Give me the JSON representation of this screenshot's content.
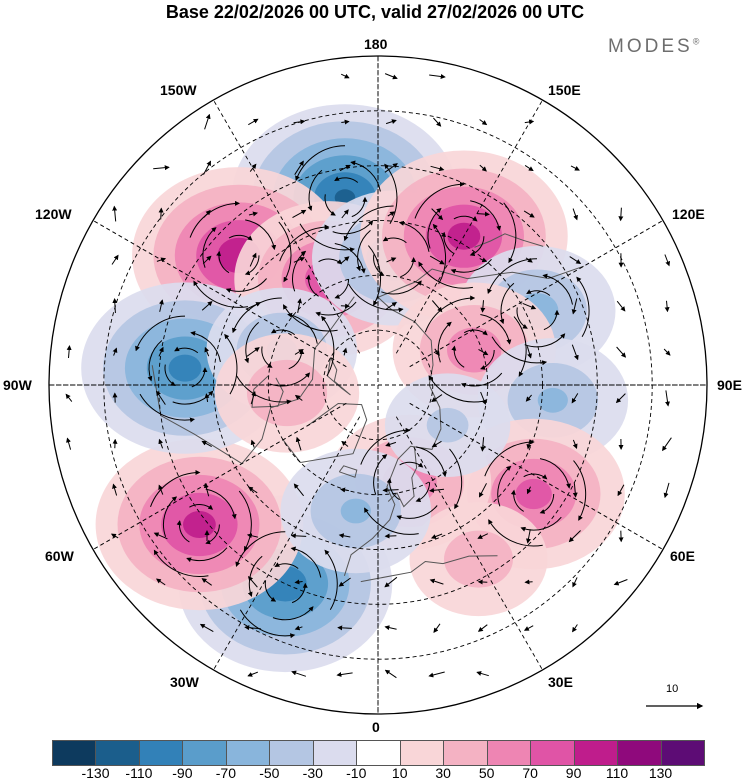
{
  "title": "Base 22/02/2026 00 UTC, valid 27/02/2026 00 UTC",
  "brand": {
    "name": "MODES",
    "mark": "®"
  },
  "grid_labels": {
    "lon_180": "180",
    "lon_150e": "150E",
    "lon_120e": "120E",
    "lon_90e": "90E",
    "lon_60e": "60E",
    "lon_30e": "30E",
    "lon_0": "0",
    "lon_30w": "30W",
    "lon_60w": "60W",
    "lon_90w": "90W",
    "lon_120w": "120W",
    "lon_150w": "150W"
  },
  "reference_vector": {
    "label": "10"
  },
  "colorbar": {
    "colors": [
      "#0d3a5e",
      "#1b5e8c",
      "#3281b8",
      "#5a9dcb",
      "#89b5dc",
      "#b4c6e3",
      "#dbdcee",
      "#ffffff",
      "#f9d6d8",
      "#f4b2c3",
      "#ee85b3",
      "#e054a6",
      "#bf1d8c",
      "#8f097c",
      "#5d0c75"
    ],
    "labels": [
      "-130",
      "-110",
      "-90",
      "-70",
      "-50",
      "-30",
      "-10",
      "10",
      "30",
      "50",
      "70",
      "90",
      "110",
      "130"
    ]
  },
  "map": {
    "background": "#ffffff",
    "grid_color": "#000000",
    "coast_color": "#555555",
    "anomalies": [
      {
        "name": "low-north-pacific",
        "lon": -170,
        "lat": 38,
        "value": -110
      },
      {
        "name": "high-aleutians",
        "lon": -133,
        "lat": 38,
        "value": 100
      },
      {
        "name": "high-alaska",
        "lon": -155,
        "lat": 58,
        "value": 80
      },
      {
        "name": "low-bering",
        "lon": 173,
        "lat": 55,
        "value": -60
      },
      {
        "name": "high-kamchatka",
        "lon": 150,
        "lat": 43,
        "value": 95
      },
      {
        "name": "low-pacific-west",
        "lon": 115,
        "lat": 42,
        "value": -55
      },
      {
        "name": "high-siberia",
        "lon": 110,
        "lat": 62,
        "value": 60
      },
      {
        "name": "low-central-asia",
        "lon": 85,
        "lat": 42,
        "value": -50
      },
      {
        "name": "high-central-asia",
        "lon": 55,
        "lat": 38,
        "value": 75
      },
      {
        "name": "high-scandinavia",
        "lon": 18,
        "lat": 62,
        "value": 60
      },
      {
        "name": "high-mediterranean",
        "lon": 30,
        "lat": 35,
        "value": 40
      },
      {
        "name": "low-atlantic",
        "lon": -25,
        "lat": 30,
        "value": -100
      },
      {
        "name": "high-north-atlantic",
        "lon": -52,
        "lat": 28,
        "value": 95
      },
      {
        "name": "low-greenland",
        "lon": -10,
        "lat": 55,
        "value": -50
      },
      {
        "name": "low-eastern-pacific",
        "lon": -95,
        "lat": 37,
        "value": -95
      },
      {
        "name": "low-canada",
        "lon": -110,
        "lat": 62,
        "value": -50
      },
      {
        "name": "high-hudson",
        "lon": -85,
        "lat": 65,
        "value": 45
      },
      {
        "name": "low-arctic",
        "lon": 60,
        "lat": 68,
        "value": -30
      }
    ],
    "circulations": [
      {
        "lon": -170,
        "lat": 38,
        "dir": "ccw"
      },
      {
        "lon": -133,
        "lat": 38,
        "dir": "cw"
      },
      {
        "lon": -155,
        "lat": 58,
        "dir": "cw"
      },
      {
        "lon": 173,
        "lat": 55,
        "dir": "ccw"
      },
      {
        "lon": 150,
        "lat": 43,
        "dir": "cw"
      },
      {
        "lon": 115,
        "lat": 42,
        "dir": "ccw"
      },
      {
        "lon": 110,
        "lat": 62,
        "dir": "cw"
      },
      {
        "lon": 55,
        "lat": 38,
        "dir": "cw"
      },
      {
        "lon": 18,
        "lat": 62,
        "dir": "cw"
      },
      {
        "lon": -25,
        "lat": 30,
        "dir": "ccw"
      },
      {
        "lon": -52,
        "lat": 28,
        "dir": "cw"
      },
      {
        "lon": -95,
        "lat": 37,
        "dir": "ccw"
      },
      {
        "lon": -110,
        "lat": 62,
        "dir": "ccw"
      }
    ]
  }
}
